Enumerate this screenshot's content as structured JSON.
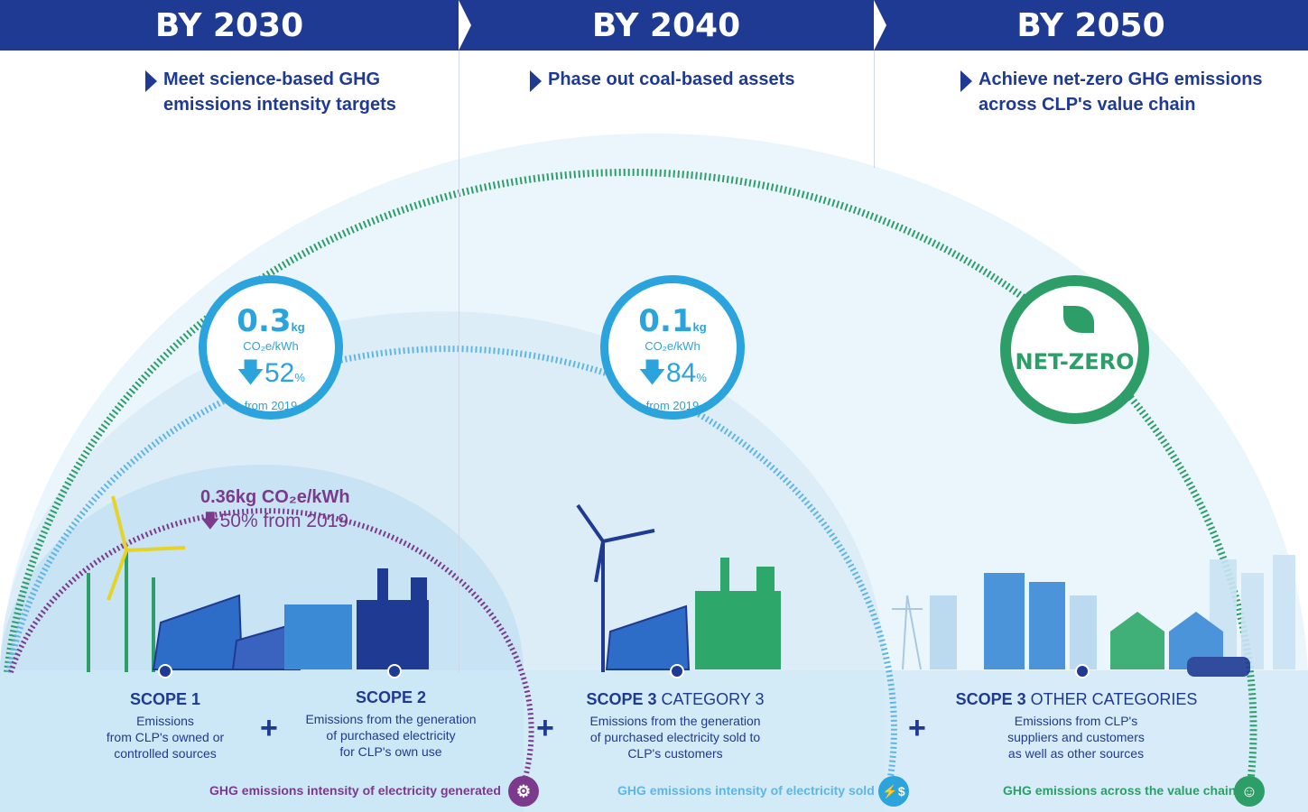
{
  "header": {
    "segments": [
      {
        "label": "BY 2030"
      },
      {
        "label": "BY 2040"
      },
      {
        "label": "BY 2050"
      }
    ]
  },
  "goals": {
    "g2030_l1": "Meet science-based GHG",
    "g2030_l2": "emissions intensity targets",
    "g2040_l1": "Phase out coal-based assets",
    "g2050_l1": "Achieve net-zero GHG emissions",
    "g2050_l2": "across CLP's value chain"
  },
  "targets": {
    "t2030": {
      "value": "0.3",
      "unit": "kg",
      "basis": "CO₂e/kWh",
      "reduction": "52",
      "pct": "%",
      "from": "from 2019"
    },
    "t2040": {
      "value": "0.1",
      "unit": "kg",
      "basis": "CO₂e/kWh",
      "reduction": "84",
      "pct": "%",
      "from": "from 2019"
    },
    "t2050": {
      "label": "NET-ZERO"
    }
  },
  "generated": {
    "line1": "0.36kg CO₂e/kWh",
    "reduction": "50% from 2019"
  },
  "scopes": {
    "s1_title": "SCOPE 1",
    "s1_l1": "Emissions",
    "s1_l2": "from CLP's owned or",
    "s1_l3": "controlled sources",
    "s2_title": "SCOPE 2",
    "s2_l1": "Emissions from the generation",
    "s2_l2": "of purchased electricity",
    "s2_l3": "for CLP's own use",
    "s3c3_title_a": "SCOPE 3",
    "s3c3_title_b": "CATEGORY 3",
    "s3c3_l1": "Emissions from the generation",
    "s3c3_l2": "of purchased electricity sold to",
    "s3c3_l3": "CLP's customers",
    "s3o_title_a": "SCOPE 3",
    "s3o_title_b": "OTHER CATEGORIES",
    "s3o_l1": "Emissions from CLP's",
    "s3o_l2": "suppliers and customers",
    "s3o_l3": "as well as other sources",
    "plus": "+"
  },
  "footers": {
    "f1": "GHG emissions intensity of electricity generated",
    "f2": "GHG emissions intensity of electricity sold",
    "f3": "GHG emissions across the value chain"
  },
  "colors": {
    "navy": "#1f3a93",
    "blue": "#2ba3dc",
    "purple": "#7b3a8c",
    "green": "#2e9e68",
    "skyfill": "#e3f1fa"
  }
}
